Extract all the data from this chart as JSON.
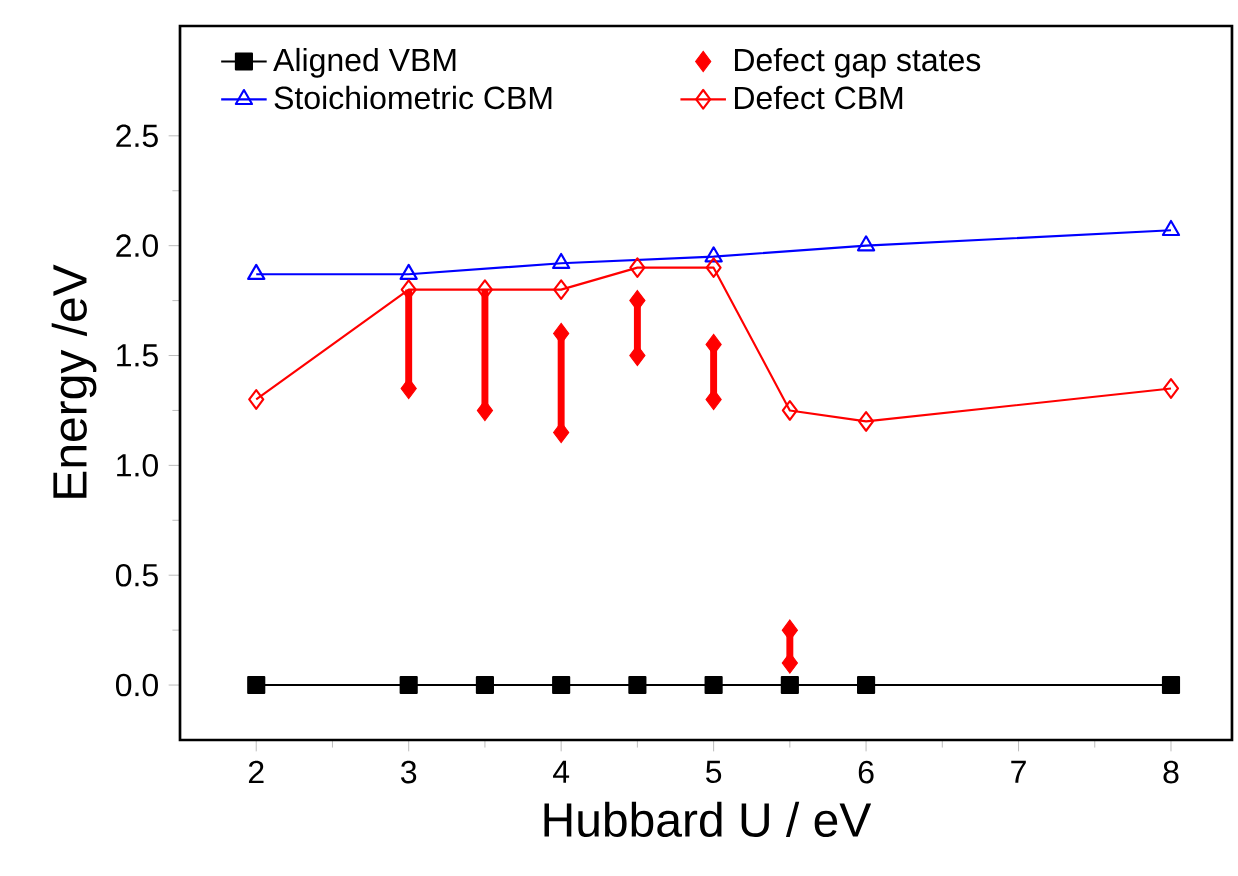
{
  "chart_data": {
    "type": "line",
    "xlabel": "Hubbard U / eV",
    "ylabel": "Energy /eV",
    "xlim": [
      1.5,
      8.4
    ],
    "ylim": [
      -0.25,
      3.0
    ],
    "xticks": [
      2,
      3,
      4,
      5,
      6,
      7,
      8
    ],
    "yticks": [
      {
        "value": 0,
        "label": "0.0"
      },
      0.5,
      {
        "value": 1,
        "label": "1.0"
      },
      1.5,
      {
        "value": 2,
        "label": "2.0"
      },
      2.5
    ],
    "legend": "top",
    "grid": false,
    "series": [
      {
        "name": "Aligned VBM",
        "color": "#000000",
        "marker": "square",
        "x": [
          2,
          3,
          3.5,
          4,
          4.5,
          5,
          5.5,
          6,
          8
        ],
        "values": [
          0,
          0,
          0,
          0,
          0,
          0,
          0,
          0,
          0
        ]
      },
      {
        "name": "Defect gap states",
        "type": "scatter",
        "color": "#ff0000",
        "marker": "diamond",
        "x": [
          3,
          3.5,
          4,
          4,
          4.5,
          4.5,
          5,
          5,
          5.5,
          5.5
        ],
        "values": [
          1.35,
          1.25,
          1.15,
          1.6,
          1.5,
          1.75,
          1.3,
          1.55,
          0.1,
          0.25
        ],
        "errors": [
          [
            1.35,
            1.8
          ],
          [
            1.25,
            1.8
          ],
          [
            1.15,
            1.6
          ],
          null,
          [
            1.5,
            1.75
          ],
          null,
          [
            1.3,
            1.55
          ],
          null,
          [
            0.1,
            0.25
          ],
          null
        ]
      },
      {
        "name": "Stoichiometric CBM",
        "color": "#0000ff",
        "marker": "triangle",
        "x": [
          2,
          3,
          4,
          5,
          6,
          8
        ],
        "values": [
          1.87,
          1.87,
          1.92,
          1.95,
          2.0,
          2.07
        ]
      },
      {
        "name": "Defect CBM",
        "color": "#ff0000",
        "marker": "diamond",
        "x": [
          2,
          3,
          3.5,
          4,
          4.5,
          5,
          5.5,
          6,
          8
        ],
        "values": [
          1.3,
          1.8,
          1.8,
          1.8,
          1.9,
          1.9,
          1.25,
          1.2,
          1.35
        ]
      }
    ]
  }
}
